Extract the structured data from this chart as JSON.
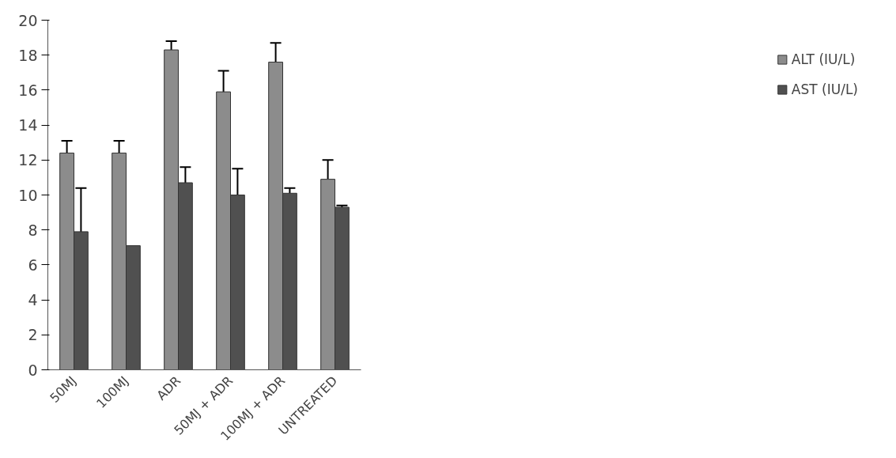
{
  "chart_data": {
    "type": "bar",
    "categories": [
      "50MJ",
      "100MJ",
      "ADR",
      "50MJ + ADR",
      "100MJ + ADR",
      "UNTREATED"
    ],
    "series": [
      {
        "name": "ALT (IU/L)",
        "color": "#8c8c8c",
        "values": [
          12.4,
          12.4,
          18.3,
          15.9,
          17.6,
          10.9
        ],
        "errors": [
          [
            12.4,
            13.1
          ],
          [
            12.4,
            13.1
          ],
          [
            18.3,
            18.8
          ],
          [
            15.9,
            17.1
          ],
          [
            17.6,
            18.7
          ],
          [
            10.9,
            12.0
          ]
        ]
      },
      {
        "name": "AST (IU/L)",
        "color": "#505050",
        "values": [
          7.9,
          7.1,
          10.7,
          10.0,
          10.1,
          9.3
        ],
        "errors": [
          [
            7.9,
            10.4
          ],
          null,
          [
            10.7,
            11.6
          ],
          [
            10.0,
            11.5
          ],
          [
            10.1,
            10.4
          ],
          [
            9.3,
            9.4
          ]
        ]
      }
    ],
    "ylim": [
      0,
      20
    ],
    "yticks": [
      0,
      2,
      4,
      6,
      8,
      10,
      12,
      14,
      16,
      18,
      20
    ],
    "grid": false,
    "legend": "right"
  }
}
